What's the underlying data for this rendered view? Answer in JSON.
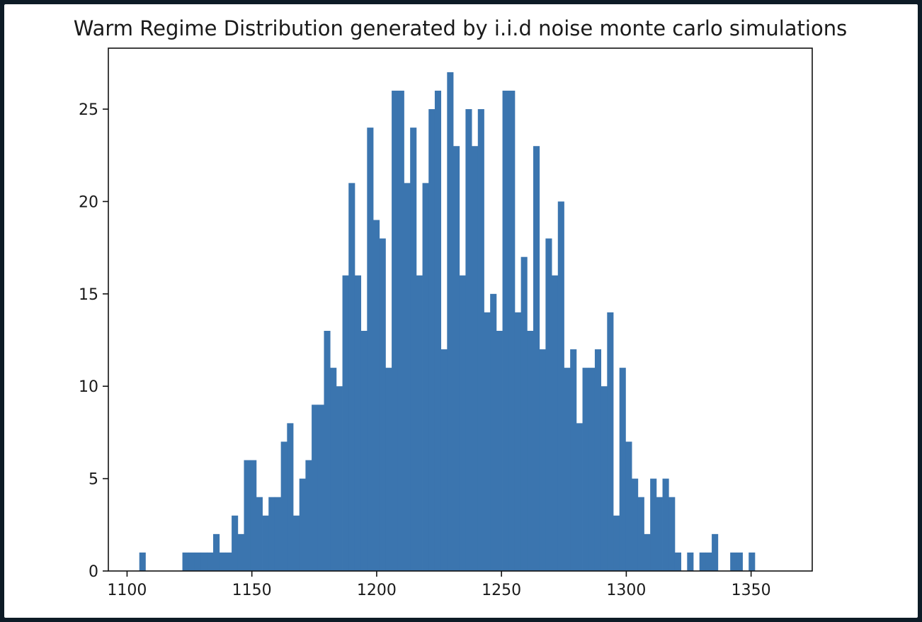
{
  "chart_data": {
    "type": "bar",
    "title": "Warm Regime Distribution generated by i.i.d noise monte carlo simulations",
    "xlabel": "",
    "ylabel": "",
    "xlim": [
      1092.5,
      1374.5
    ],
    "ylim": [
      0,
      28.3
    ],
    "xticks": [
      1100,
      1150,
      1200,
      1250,
      1300,
      1350
    ],
    "yticks": [
      0,
      5,
      10,
      15,
      20,
      25
    ],
    "grid": false,
    "bar_color": "#3b75af",
    "bin_start": 1104.9,
    "bin_width": 2.466,
    "counts": [
      1,
      0,
      0,
      0,
      0,
      0,
      0,
      1,
      1,
      1,
      1,
      1,
      2,
      1,
      1,
      3,
      2,
      6,
      6,
      4,
      3,
      4,
      4,
      7,
      8,
      3,
      5,
      6,
      9,
      9,
      13,
      11,
      10,
      16,
      21,
      16,
      13,
      24,
      19,
      18,
      11,
      26,
      26,
      21,
      24,
      16,
      21,
      25,
      26,
      12,
      27,
      23,
      16,
      25,
      23,
      25,
      14,
      15,
      13,
      26,
      26,
      14,
      17,
      13,
      23,
      12,
      18,
      16,
      20,
      11,
      12,
      8,
      11,
      11,
      12,
      10,
      14,
      3,
      11,
      7,
      5,
      4,
      2,
      5,
      4,
      5,
      4,
      1,
      0,
      1,
      0,
      1,
      1,
      2,
      0,
      0,
      1,
      1,
      0,
      1
    ]
  }
}
